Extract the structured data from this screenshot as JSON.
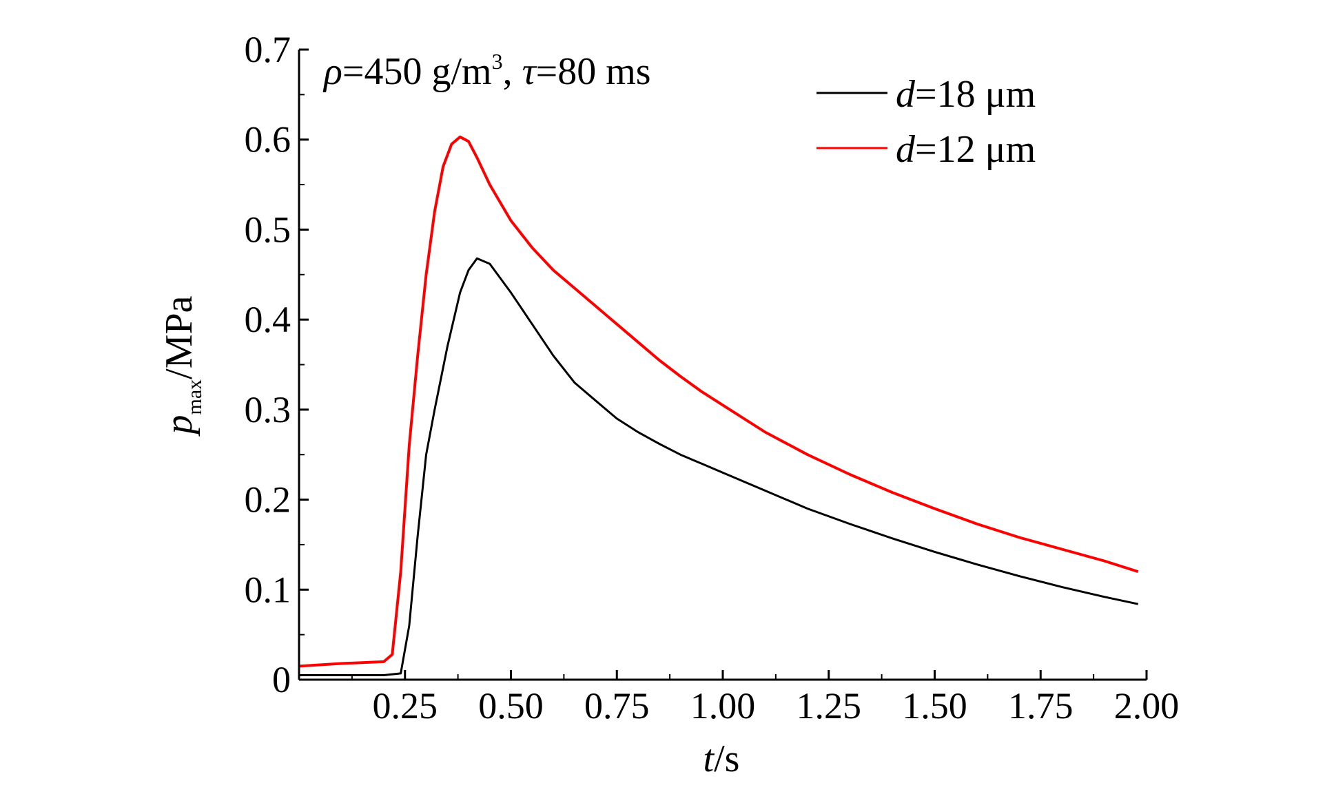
{
  "chart_data": {
    "type": "line",
    "xlabel_var": "t",
    "xlabel_unit": "/s",
    "ylabel_var": "p",
    "ylabel_sub": "max",
    "ylabel_unit": "/MPa",
    "xlim": [
      0,
      2.0
    ],
    "ylim": [
      0,
      0.7
    ],
    "x_ticks": [
      "0.25",
      "0.50",
      "0.75",
      "1.00",
      "1.25",
      "1.50",
      "1.75",
      "2.00"
    ],
    "x_tick_values": [
      0.25,
      0.5,
      0.75,
      1.0,
      1.25,
      1.5,
      1.75,
      2.0
    ],
    "y_ticks": [
      "0",
      "0.1",
      "0.2",
      "0.3",
      "0.4",
      "0.5",
      "0.6",
      "0.7"
    ],
    "y_tick_values": [
      0,
      0.1,
      0.2,
      0.3,
      0.4,
      0.5,
      0.6,
      0.7
    ],
    "annotation": {
      "rho_symbol": "ρ",
      "rho_value": "=450 g/m",
      "rho_exp": "3",
      "sep": ", ",
      "tau_symbol": "τ",
      "tau_value": "=80 ms"
    },
    "legend_position": "top-right",
    "series": [
      {
        "name_var": "d",
        "name_value": "=18 μm",
        "color": "#000000",
        "x": [
          0,
          0.1,
          0.2,
          0.24,
          0.26,
          0.28,
          0.3,
          0.32,
          0.35,
          0.38,
          0.4,
          0.42,
          0.45,
          0.5,
          0.55,
          0.6,
          0.65,
          0.7,
          0.75,
          0.8,
          0.85,
          0.9,
          0.95,
          1.0,
          1.1,
          1.2,
          1.3,
          1.4,
          1.5,
          1.6,
          1.7,
          1.8,
          1.9,
          1.98
        ],
        "y": [
          0.005,
          0.005,
          0.005,
          0.007,
          0.06,
          0.16,
          0.25,
          0.3,
          0.37,
          0.43,
          0.455,
          0.468,
          0.462,
          0.43,
          0.395,
          0.36,
          0.33,
          0.31,
          0.29,
          0.275,
          0.262,
          0.25,
          0.24,
          0.23,
          0.21,
          0.19,
          0.173,
          0.157,
          0.142,
          0.128,
          0.115,
          0.103,
          0.092,
          0.084
        ]
      },
      {
        "name_var": "d",
        "name_value": "=12 μm",
        "color": "#ff0000",
        "x": [
          0,
          0.1,
          0.2,
          0.22,
          0.24,
          0.26,
          0.28,
          0.3,
          0.32,
          0.34,
          0.36,
          0.38,
          0.4,
          0.42,
          0.45,
          0.5,
          0.55,
          0.6,
          0.65,
          0.7,
          0.75,
          0.8,
          0.85,
          0.9,
          0.95,
          1.0,
          1.1,
          1.2,
          1.3,
          1.4,
          1.5,
          1.6,
          1.7,
          1.8,
          1.9,
          1.98
        ],
        "y": [
          0.015,
          0.018,
          0.02,
          0.028,
          0.12,
          0.26,
          0.36,
          0.45,
          0.52,
          0.57,
          0.595,
          0.603,
          0.598,
          0.58,
          0.55,
          0.51,
          0.48,
          0.455,
          0.435,
          0.415,
          0.395,
          0.375,
          0.355,
          0.337,
          0.32,
          0.305,
          0.275,
          0.25,
          0.228,
          0.208,
          0.19,
          0.173,
          0.158,
          0.145,
          0.132,
          0.12
        ]
      }
    ]
  }
}
